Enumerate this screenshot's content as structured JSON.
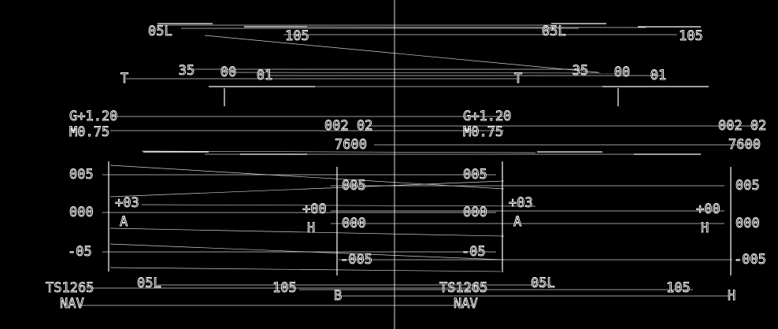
{
  "panels": [
    {
      "heading_left": "05L",
      "heading_right": "105",
      "tape_t": "T",
      "tape_1": "35",
      "tape_2": "00",
      "tape_3": "01",
      "g_load": "G+1.20",
      "mach": "M0.75",
      "alt_code": "002 02",
      "altitude": "7600",
      "left_scale_top": "005",
      "left_scale_mid": "000",
      "left_scale_bottom": "-05",
      "left_marker": "+03",
      "left_marker_sub": "A",
      "right_marker": "+00",
      "right_marker_sub": "H",
      "right_scale_top": "005",
      "right_scale_mid": "000",
      "right_scale_bottom": "-005",
      "speed": "TS1265",
      "mode": "NAV",
      "bottom_left": "05L",
      "bottom_right": "105",
      "bottom_mark": "B"
    },
    {
      "heading_left": "05L",
      "heading_right": "105",
      "tape_t": "T",
      "tape_1": "35",
      "tape_2": "00",
      "tape_3": "01",
      "g_load": "G+1.20",
      "mach": "M0.75",
      "alt_code": "002 02",
      "altitude": "7600",
      "left_scale_top": "005",
      "left_scale_mid": "000",
      "left_scale_bottom": "-05",
      "left_marker": "+03",
      "left_marker_sub": "A",
      "right_marker": "+00",
      "right_marker_sub": "H",
      "right_scale_top": "005",
      "right_scale_mid": "000",
      "right_scale_bottom": "-005",
      "speed": "TS1265",
      "mode": "NAV",
      "bottom_left": "05L",
      "bottom_right": "105",
      "bottom_mark": "H"
    }
  ]
}
